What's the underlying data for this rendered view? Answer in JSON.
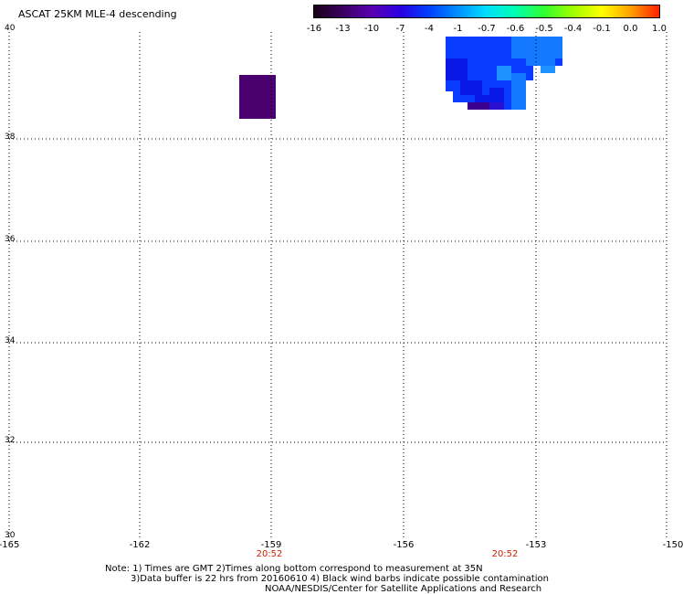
{
  "title": "ASCAT 25KM MLE-4 descending",
  "colorbar": {
    "labels": [
      "-16",
      "-13",
      "-10",
      "-7",
      "-4",
      "-1",
      "-0.7",
      "-0.6",
      "-0.5",
      "-0.4",
      "-0.1",
      "0.0",
      "1.0"
    ],
    "colors": [
      "#1a0018",
      "#3a0060",
      "#5a00b0",
      "#2a00e0",
      "#0040ff",
      "#0090ff",
      "#00e0ff",
      "#00ffb0",
      "#30ff30",
      "#a0ff00",
      "#ffff00",
      "#ffa000",
      "#ff2000"
    ]
  },
  "map": {
    "lat_labels": [
      "40",
      "38",
      "36",
      "34",
      "32",
      "30"
    ],
    "lon_labels": [
      "-165",
      "-162",
      "-159",
      "-156",
      "-153",
      "-150"
    ],
    "time_labels": [
      "20:52",
      "20:52"
    ],
    "colors": {
      "purple_box": "#4b0070",
      "blue_main": "#0a3cff",
      "blue_light": "#1478ff",
      "blue_dark": "#0a18e6",
      "purple_small": "#3c0090",
      "cyan_blue": "#1e90ff"
    }
  },
  "notes": {
    "line1": "Note: 1) Times are GMT 2)Times along bottom correspond to measurement at 35N",
    "line2": "3)Data buffer is 22 hrs from 20160610 4) Black wind barbs indicate possible contamination",
    "line3": "NOAA/NESDIS/Center for Satellite Applications and Research"
  }
}
